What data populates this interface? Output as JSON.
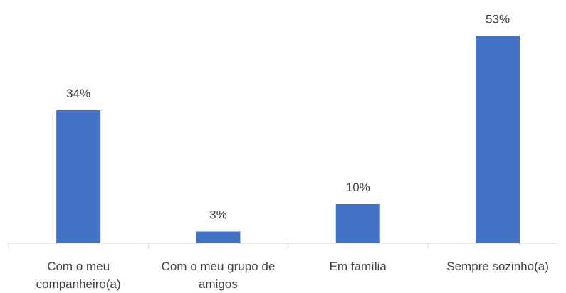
{
  "chart_data": {
    "type": "bar",
    "categories": [
      "Com o meu companheiro(a)",
      "Com o meu grupo de amigos",
      "Em família",
      "Sempre sozinho(a)"
    ],
    "values": [
      34,
      3,
      10,
      53
    ],
    "value_labels": [
      "34%",
      "3%",
      "10%",
      "53%"
    ],
    "color": "#4472c4"
  }
}
